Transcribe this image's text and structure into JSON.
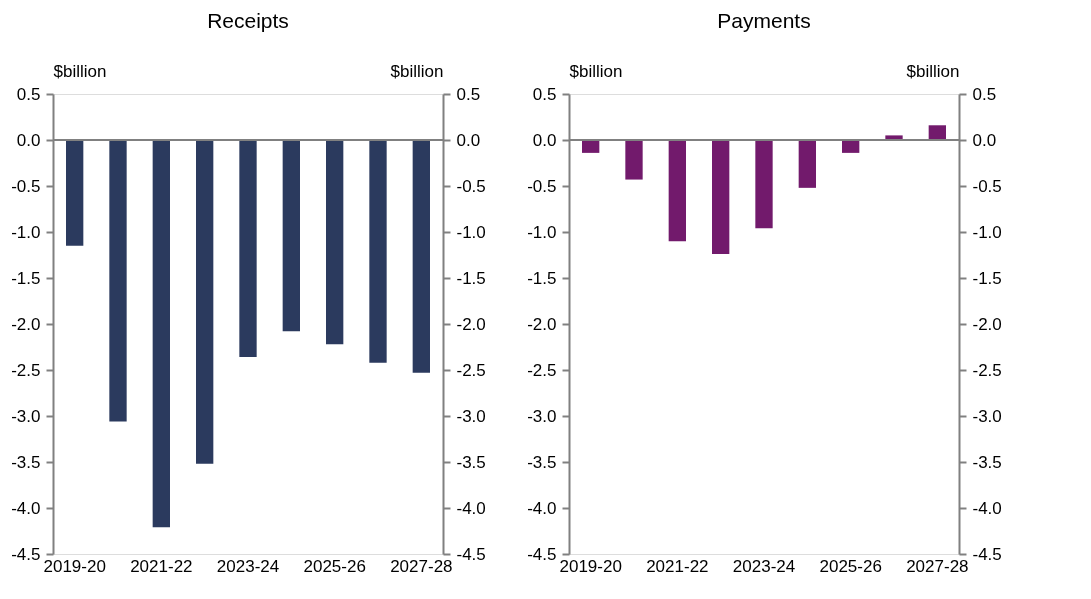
{
  "chart_data": [
    {
      "type": "bar",
      "title": "Receipts",
      "ylabel": "$billion",
      "y2label": "$billion",
      "categories": [
        "2019-20",
        null,
        "2021-22",
        null,
        "2023-24",
        null,
        "2025-26",
        null,
        "2027-28"
      ],
      "values": [
        -1.15,
        -3.06,
        -4.21,
        -3.52,
        -2.36,
        -2.08,
        -2.22,
        -2.42,
        -2.53
      ],
      "color": "#2b3a5e",
      "ylim": [
        -4.5,
        0.5
      ],
      "yticks": [
        {
          "value": 0.5,
          "label": "0.5"
        },
        {
          "value": 0,
          "label": "0.0"
        },
        {
          "value": -0.5,
          "label": "-0.5"
        },
        {
          "value": -1,
          "label": "-1.0"
        },
        {
          "value": -1.5,
          "label": "-1.5"
        },
        {
          "value": -2,
          "label": "-2.0"
        },
        {
          "value": -2.5,
          "label": "-2.5"
        },
        {
          "value": -3,
          "label": "-3.0"
        },
        {
          "value": -3.5,
          "label": "-3.5"
        },
        {
          "value": -4,
          "label": "-4.0"
        },
        {
          "value": -4.5,
          "label": "-4.5"
        }
      ],
      "y2lim": [
        -4.5,
        0.5
      ],
      "y2ticks": [
        {
          "value": 0.5,
          "label": "0.5"
        },
        {
          "value": 0,
          "label": "0.0"
        },
        {
          "value": -0.5,
          "label": "-0.5"
        },
        {
          "value": -1,
          "label": "-1.0"
        },
        {
          "value": -1.5,
          "label": "-1.5"
        },
        {
          "value": -2,
          "label": "-2.0"
        },
        {
          "value": -2.5,
          "label": "-2.5"
        },
        {
          "value": -3,
          "label": "-3.0"
        },
        {
          "value": -3.5,
          "label": "-3.5"
        },
        {
          "value": -4,
          "label": "-4.0"
        },
        {
          "value": -4.5,
          "label": "-4.5"
        }
      ]
    },
    {
      "type": "bar",
      "title": "Payments",
      "ylabel": "$billion",
      "y2label": "$billion",
      "categories": [
        "2019-20",
        null,
        "2021-22",
        null,
        "2023-24",
        null,
        "2025-26",
        null,
        "2027-28"
      ],
      "values": [
        -0.14,
        -0.43,
        -1.1,
        -1.24,
        -0.96,
        -0.52,
        -0.14,
        0.05,
        0.16
      ],
      "color": "#721a6c",
      "ylim": [
        -4.5,
        0.5
      ],
      "yticks": [
        {
          "value": 0.5,
          "label": "0.5"
        },
        {
          "value": 0,
          "label": "0.0"
        },
        {
          "value": -0.5,
          "label": "-0.5"
        },
        {
          "value": -1,
          "label": "-1.0"
        },
        {
          "value": -1.5,
          "label": "-1.5"
        },
        {
          "value": -2,
          "label": "-2.0"
        },
        {
          "value": -2.5,
          "label": "-2.5"
        },
        {
          "value": -3,
          "label": "-3.0"
        },
        {
          "value": -3.5,
          "label": "-3.5"
        },
        {
          "value": -4,
          "label": "-4.0"
        },
        {
          "value": -4.5,
          "label": "-4.5"
        }
      ],
      "y2lim": [
        -4.5,
        0.5
      ],
      "y2ticks": [
        {
          "value": 0.5,
          "label": "0.5"
        },
        {
          "value": 0,
          "label": "0.0"
        },
        {
          "value": -0.5,
          "label": "-0.5"
        },
        {
          "value": -1,
          "label": "-1.0"
        },
        {
          "value": -1.5,
          "label": "-1.5"
        },
        {
          "value": -2,
          "label": "-2.0"
        },
        {
          "value": -2.5,
          "label": "-2.5"
        },
        {
          "value": -3,
          "label": "-3.0"
        },
        {
          "value": -3.5,
          "label": "-3.5"
        },
        {
          "value": -4,
          "label": "-4.0"
        },
        {
          "value": -4.5,
          "label": "-4.5"
        }
      ]
    }
  ]
}
